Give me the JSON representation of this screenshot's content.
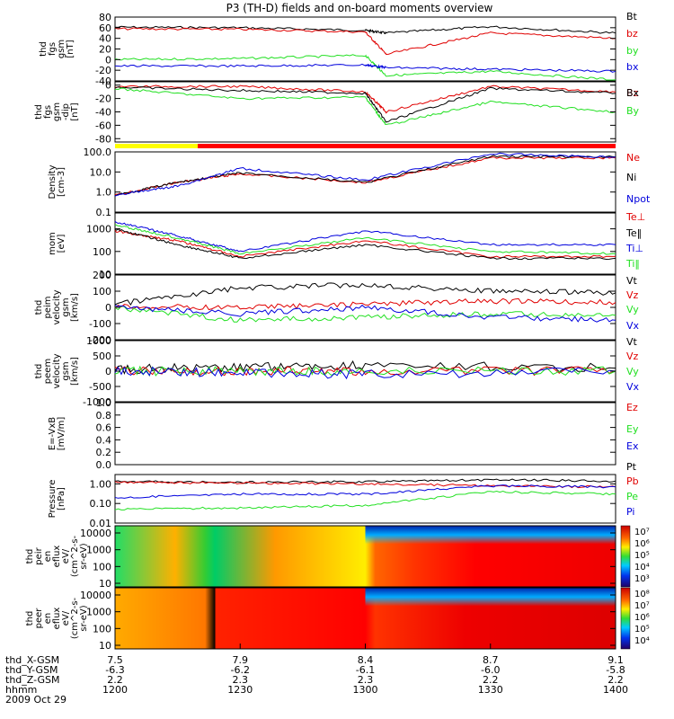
{
  "title": "P3 (TH-D) fields and on-board moments overview",
  "colors": {
    "black": "#000000",
    "red": "#e00000",
    "green": "#22e022",
    "blue": "#0000dd",
    "yellow": "#ffff00",
    "bar_red": "#ff0000"
  },
  "time_axis": {
    "rows": [
      {
        "label": "thd_X-GSM",
        "values": [
          "7.5",
          "7.9",
          "8.4",
          "8.7",
          "9.1"
        ]
      },
      {
        "label": "thd_Y-GSM",
        "values": [
          "-6.3",
          "-6.2",
          "-6.1",
          "-6.0",
          "-5.8"
        ]
      },
      {
        "label": "thd_Z-GSM",
        "values": [
          "2.2",
          "2.3",
          "2.3",
          "2.2",
          "2.2"
        ]
      },
      {
        "label": "hhmm",
        "values": [
          "1200",
          "1230",
          "1300",
          "1330",
          "1400"
        ]
      }
    ],
    "date": "2009 Oct 29"
  },
  "chart_data": [
    {
      "type": "line",
      "id": "fgs",
      "ylabel": [
        "thd",
        "fgs",
        "gsm",
        "[nT]"
      ],
      "ylim": [
        -40,
        80
      ],
      "ticks": [
        "80",
        "60",
        "40",
        "20",
        "0",
        "-20",
        "-40"
      ],
      "series": [
        {
          "name": "Bt",
          "color": "#000000",
          "x": [
            "1200",
            "1230",
            "1300",
            "1305",
            "1330",
            "1400"
          ],
          "values": [
            61,
            60,
            55,
            50,
            62,
            50
          ]
        },
        {
          "name": "bz",
          "color": "#e00000",
          "x": [
            "1200",
            "1230",
            "1300",
            "1305",
            "1330",
            "1400"
          ],
          "values": [
            58,
            57,
            52,
            10,
            50,
            40
          ]
        },
        {
          "name": "by",
          "color": "#22e022",
          "x": [
            "1200",
            "1230",
            "1300",
            "1305",
            "1330",
            "1400"
          ],
          "values": [
            0,
            2,
            8,
            -30,
            -22,
            -38
          ]
        },
        {
          "name": "bx",
          "color": "#0000dd",
          "x": [
            "1200",
            "1230",
            "1300",
            "1305",
            "1330",
            "1400"
          ],
          "values": [
            -12,
            -12,
            -10,
            -15,
            -18,
            -22
          ]
        }
      ]
    },
    {
      "type": "line",
      "id": "fgs_dip",
      "ylabel": [
        "thd",
        "fgs",
        "gsm",
        "-dip",
        "[nT]"
      ],
      "ylim": [
        -85,
        5
      ],
      "ticks": [
        "0",
        "-20",
        "-40",
        "-60",
        "-80"
      ],
      "series": [
        {
          "name": "Bz",
          "color": "#e00000",
          "x": [
            "1200",
            "1230",
            "1300",
            "1305",
            "1330",
            "1400"
          ],
          "values": [
            -2,
            -2,
            -10,
            -40,
            -2,
            -10
          ]
        },
        {
          "name": "Bx",
          "color": "#000000",
          "x": [
            "1200",
            "1230",
            "1300",
            "1305",
            "1330",
            "1400"
          ],
          "values": [
            -3,
            -8,
            -12,
            -55,
            -5,
            -12
          ]
        },
        {
          "name": "By",
          "color": "#22e022",
          "x": [
            "1200",
            "1230",
            "1300",
            "1305",
            "1330",
            "1400"
          ],
          "values": [
            -5,
            -20,
            -18,
            -60,
            -25,
            -40
          ]
        }
      ]
    },
    {
      "type": "line",
      "id": "density",
      "log": true,
      "ylabel": [
        "Density",
        "[cm-3]"
      ],
      "ylim": [
        0.1,
        100
      ],
      "ticks": [
        "100.0",
        "10.0",
        "1.0",
        "0.1"
      ],
      "series": [
        {
          "name": "Ne",
          "color": "#e00000",
          "x": [
            "1200",
            "1215",
            "1230",
            "1300",
            "1330",
            "1400"
          ],
          "values": [
            0.7,
            3,
            8,
            3,
            50,
            50
          ]
        },
        {
          "name": "Ni",
          "color": "#000000",
          "x": [
            "1200",
            "1215",
            "1230",
            "1300",
            "1330",
            "1400"
          ],
          "values": [
            0.7,
            3,
            9,
            3,
            60,
            55
          ]
        },
        {
          "name": "Npot",
          "color": "#0000dd",
          "x": [
            "1200",
            "1215",
            "1230",
            "1300",
            "1330",
            "1400"
          ],
          "values": [
            0.7,
            2,
            15,
            4,
            80,
            55
          ]
        }
      ]
    },
    {
      "type": "line",
      "id": "temp",
      "log": true,
      "ylabel": [
        "mom",
        "[eV]"
      ],
      "ylim": [
        10,
        5000
      ],
      "ticks": [
        "1000",
        "100",
        "10"
      ],
      "series": [
        {
          "name": "Te⊥",
          "color": "#e00000",
          "x": [
            "1200",
            "1215",
            "1230",
            "1300",
            "1330",
            "1400"
          ],
          "values": [
            800,
            300,
            60,
            300,
            60,
            60
          ]
        },
        {
          "name": "Te‖",
          "color": "#000000",
          "x": [
            "1200",
            "1215",
            "1230",
            "1300",
            "1330",
            "1400"
          ],
          "values": [
            1000,
            200,
            50,
            200,
            50,
            50
          ]
        },
        {
          "name": "Ti⊥",
          "color": "#0000dd",
          "x": [
            "1200",
            "1215",
            "1230",
            "1300",
            "1330",
            "1400"
          ],
          "values": [
            2000,
            500,
            100,
            800,
            200,
            200
          ]
        },
        {
          "name": "Ti‖",
          "color": "#22e022",
          "x": [
            "1200",
            "1215",
            "1230",
            "1300",
            "1330",
            "1400"
          ],
          "values": [
            1500,
            400,
            80,
            400,
            100,
            80
          ]
        }
      ]
    },
    {
      "type": "line",
      "id": "peim_vel",
      "ylabel": [
        "thd",
        "peim",
        "velocity",
        "gsm",
        "[km/s]"
      ],
      "ylim": [
        -200,
        200
      ],
      "ticks": [
        "200",
        "100",
        "0",
        "-100",
        "-200"
      ],
      "series": [
        {
          "name": "Vt",
          "color": "#000000",
          "x": [
            "1200",
            "1230",
            "1300",
            "1330",
            "1400"
          ],
          "values": [
            20,
            120,
            140,
            100,
            90
          ]
        },
        {
          "name": "Vz",
          "color": "#e00000",
          "x": [
            "1200",
            "1230",
            "1300",
            "1330",
            "1400"
          ],
          "values": [
            5,
            0,
            20,
            40,
            30
          ]
        },
        {
          "name": "Vy",
          "color": "#22e022",
          "x": [
            "1200",
            "1230",
            "1300",
            "1330",
            "1400"
          ],
          "values": [
            0,
            -80,
            -60,
            -40,
            -50
          ]
        },
        {
          "name": "Vx",
          "color": "#0000dd",
          "x": [
            "1200",
            "1230",
            "1300",
            "1330",
            "1400"
          ],
          "values": [
            0,
            -40,
            0,
            -60,
            -80
          ]
        }
      ]
    },
    {
      "type": "line",
      "id": "peem_vel",
      "ylabel": [
        "thd",
        "peem",
        "velocity",
        "gsm",
        "[km/s]"
      ],
      "ylim": [
        -1000,
        1000
      ],
      "ticks": [
        "1000",
        "500",
        "0",
        "-500",
        "-1000"
      ],
      "series": [
        {
          "name": "Vt",
          "color": "#000000",
          "x": [
            "1200",
            "1230",
            "1300",
            "1400"
          ],
          "values": [
            50,
            150,
            200,
            100
          ]
        },
        {
          "name": "Vz",
          "color": "#e00000",
          "x": [
            "1200",
            "1230",
            "1300",
            "1400"
          ],
          "values": [
            0,
            0,
            0,
            0
          ]
        },
        {
          "name": "Vy",
          "color": "#22e022",
          "x": [
            "1200",
            "1230",
            "1300",
            "1400"
          ],
          "values": [
            0,
            0,
            0,
            0
          ]
        },
        {
          "name": "Vx",
          "color": "#0000dd",
          "x": [
            "1200",
            "1230",
            "1300",
            "1400"
          ],
          "values": [
            0,
            -50,
            -100,
            0
          ]
        }
      ]
    },
    {
      "type": "line",
      "id": "e_field",
      "ylabel": [
        "E=-VxB",
        "[mV/m]"
      ],
      "ylim": [
        0,
        1
      ],
      "ticks": [
        "1.0",
        "0.8",
        "0.6",
        "0.4",
        "0.2",
        "0.0"
      ],
      "series": [
        {
          "name": "Ez",
          "color": "#e00000",
          "x": [],
          "values": []
        },
        {
          "name": "Ey",
          "color": "#22e022",
          "x": [],
          "values": []
        },
        {
          "name": "Ex",
          "color": "#0000dd",
          "x": [],
          "values": []
        }
      ]
    },
    {
      "type": "line",
      "id": "pressure",
      "log": true,
      "ylabel": [
        "Pressure",
        "[nPa]"
      ],
      "ylim": [
        0.01,
        3
      ],
      "ticks": [
        "1.00",
        "0.10",
        "0.01"
      ],
      "series": [
        {
          "name": "Pt",
          "color": "#000000",
          "x": [
            "1200",
            "1230",
            "1300",
            "1330",
            "1400"
          ],
          "values": [
            1.3,
            1.2,
            1.3,
            1.6,
            1.4
          ]
        },
        {
          "name": "Pb",
          "color": "#e00000",
          "x": [
            "1200",
            "1230",
            "1300",
            "1330",
            "1400"
          ],
          "values": [
            1.2,
            1.1,
            1.0,
            0.8,
            0.7
          ]
        },
        {
          "name": "Pe",
          "color": "#22e022",
          "x": [
            "1200",
            "1230",
            "1300",
            "1330",
            "1400"
          ],
          "values": [
            0.05,
            0.06,
            0.08,
            0.4,
            0.3
          ]
        },
        {
          "name": "Pi",
          "color": "#0000dd",
          "x": [
            "1200",
            "1230",
            "1300",
            "1330",
            "1400"
          ],
          "values": [
            0.2,
            0.3,
            0.3,
            0.8,
            0.7
          ]
        }
      ]
    },
    {
      "type": "heatmap",
      "id": "peir",
      "ylabel": [
        "thd",
        "peir",
        "en",
        "eflux",
        "eV/",
        "(cm^2-s-",
        "sr-eV)"
      ],
      "ylim": [
        10,
        20000
      ],
      "ticks": [
        "10000",
        "1000",
        "100",
        "10"
      ],
      "colorbar": [
        "10⁷",
        "10⁶",
        "10⁵",
        "10⁴",
        "10³"
      ]
    },
    {
      "type": "heatmap",
      "id": "peer",
      "ylabel": [
        "thd",
        "peer",
        "en",
        "eflux",
        "eV/",
        "(cm^2-s-",
        "sr-eV)"
      ],
      "ylim": [
        10,
        20000
      ],
      "ticks": [
        "10000",
        "1000",
        "100",
        "10"
      ],
      "colorbar": [
        "10⁸",
        "10⁷",
        "10⁶",
        "10⁵",
        "10⁴"
      ]
    }
  ]
}
